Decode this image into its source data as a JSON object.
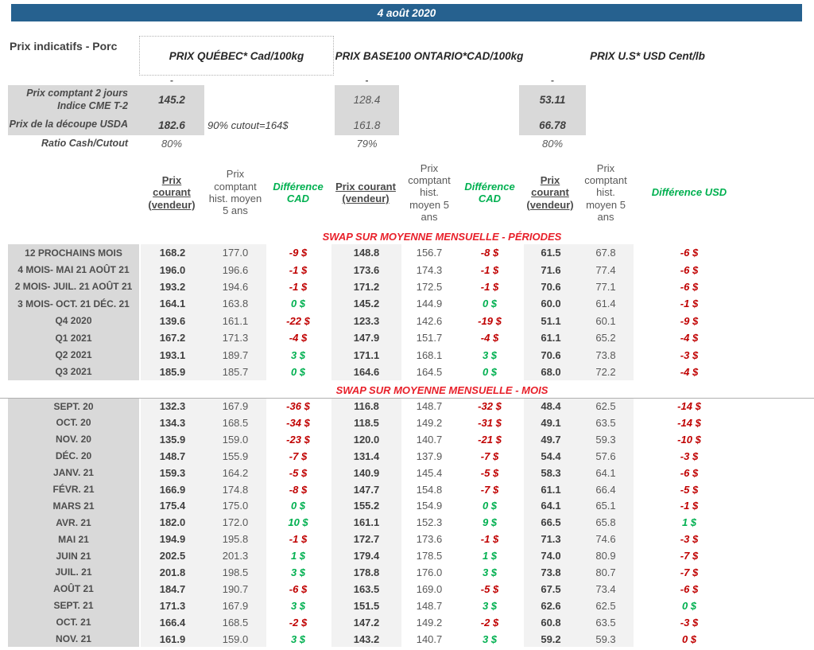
{
  "banner": {
    "date": "4 août 2020"
  },
  "intro": {
    "label": "Prix indicatifs - Porc"
  },
  "regions": [
    {
      "label": "PRIX QUÉBEC* Cad/100kg"
    },
    {
      "label": "PRIX BASE100 ONTARIO*CAD/100kg"
    },
    {
      "label": "PRIX U.S* USD Cent/lb"
    }
  ],
  "spot": {
    "dash": "-",
    "cme": {
      "label1": "Prix comptant 2 jours",
      "label2": "Indice CME T-2",
      "qc": "145.2",
      "on": "128.4",
      "us": "53.11"
    },
    "cutout": {
      "label": "Prix de la découpe USDA",
      "qc": "182.6",
      "note": "90% cutout=164$",
      "on": "161.8",
      "us": "66.78"
    },
    "ratio": {
      "label": "Ratio Cash/Cutout",
      "qc": "80%",
      "on": "79%",
      "us": "80%"
    }
  },
  "columns": {
    "current": "Prix courant (vendeur)",
    "hist": "Prix comptant hist. moyen 5 ans",
    "diff_cad": "Différence CAD",
    "diff_usd": "Différence USD"
  },
  "colors": {
    "negative": "#c00000",
    "positive": "#00b050",
    "section_title": "#e8202a",
    "banner_blue": "#26618f"
  },
  "sections": [
    {
      "title": "SWAP SUR MOYENNE MENSUELLE - PÉRIODES",
      "rows": [
        {
          "label": "12 PROCHAINS MOIS",
          "cells": [
            "168.2",
            "177.0",
            "-9 $",
            "148.8",
            "156.7",
            "-8 $",
            "61.5",
            "67.8",
            "-6 $"
          ],
          "dc": [
            "n",
            "n",
            "n"
          ]
        },
        {
          "label": "4 MOIS- MAI 21 AOÛT 21",
          "cells": [
            "196.0",
            "196.6",
            "-1 $",
            "173.6",
            "174.3",
            "-1 $",
            "71.6",
            "77.4",
            "-6 $"
          ],
          "dc": [
            "n",
            "n",
            "n"
          ]
        },
        {
          "label": "2 MOIS- JUIL. 21 AOÛT 21",
          "cells": [
            "193.2",
            "194.6",
            "-1 $",
            "171.2",
            "172.5",
            "-1 $",
            "70.6",
            "77.1",
            "-6 $"
          ],
          "dc": [
            "n",
            "n",
            "n"
          ]
        },
        {
          "label": "3 MOIS- OCT. 21 DÉC. 21",
          "cells": [
            "164.1",
            "163.8",
            "0 $",
            "145.2",
            "144.9",
            "0 $",
            "60.0",
            "61.4",
            "-1 $"
          ],
          "dc": [
            "p",
            "p",
            "n"
          ]
        },
        {
          "label": "Q4 2020",
          "cells": [
            "139.6",
            "161.1",
            "-22 $",
            "123.3",
            "142.6",
            "-19 $",
            "51.1",
            "60.1",
            "-9 $"
          ],
          "dc": [
            "n",
            "n",
            "n"
          ]
        },
        {
          "label": "Q1 2021",
          "cells": [
            "167.2",
            "171.3",
            "-4 $",
            "147.9",
            "151.7",
            "-4 $",
            "61.1",
            "65.2",
            "-4 $"
          ],
          "dc": [
            "n",
            "n",
            "n"
          ]
        },
        {
          "label": "Q2 2021",
          "cells": [
            "193.1",
            "189.7",
            "3 $",
            "171.1",
            "168.1",
            "3 $",
            "70.6",
            "73.8",
            "-3 $"
          ],
          "dc": [
            "p",
            "p",
            "n"
          ]
        },
        {
          "label": "Q3 2021",
          "cells": [
            "185.9",
            "185.7",
            "0 $",
            "164.6",
            "164.5",
            "0 $",
            "68.0",
            "72.2",
            "-4 $"
          ],
          "dc": [
            "p",
            "p",
            "n"
          ]
        }
      ]
    },
    {
      "title": "SWAP SUR MOYENNE MENSUELLE - MOIS",
      "rows": [
        {
          "label": "SEPT. 20",
          "cells": [
            "132.3",
            "167.9",
            "-36 $",
            "116.8",
            "148.7",
            "-32 $",
            "48.4",
            "62.5",
            "-14 $"
          ],
          "dc": [
            "n",
            "n",
            "n"
          ]
        },
        {
          "label": "OCT. 20",
          "cells": [
            "134.3",
            "168.5",
            "-34 $",
            "118.5",
            "149.2",
            "-31 $",
            "49.1",
            "63.5",
            "-14 $"
          ],
          "dc": [
            "n",
            "n",
            "n"
          ]
        },
        {
          "label": "NOV. 20",
          "cells": [
            "135.9",
            "159.0",
            "-23 $",
            "120.0",
            "140.7",
            "-21 $",
            "49.7",
            "59.3",
            "-10 $"
          ],
          "dc": [
            "n",
            "n",
            "n"
          ]
        },
        {
          "label": "DÉC. 20",
          "cells": [
            "148.7",
            "155.9",
            "-7 $",
            "131.4",
            "137.9",
            "-7 $",
            "54.4",
            "57.6",
            "-3 $"
          ],
          "dc": [
            "n",
            "n",
            "n"
          ]
        },
        {
          "label": "JANV. 21",
          "cells": [
            "159.3",
            "164.2",
            "-5 $",
            "140.9",
            "145.4",
            "-5 $",
            "58.3",
            "64.1",
            "-6 $"
          ],
          "dc": [
            "n",
            "n",
            "n"
          ]
        },
        {
          "label": "FÉVR. 21",
          "cells": [
            "166.9",
            "174.8",
            "-8 $",
            "147.7",
            "154.8",
            "-7 $",
            "61.1",
            "66.4",
            "-5 $"
          ],
          "dc": [
            "n",
            "n",
            "n"
          ]
        },
        {
          "label": "MARS 21",
          "cells": [
            "175.4",
            "175.0",
            "0 $",
            "155.2",
            "154.9",
            "0 $",
            "64.1",
            "65.1",
            "-1 $"
          ],
          "dc": [
            "p",
            "p",
            "n"
          ]
        },
        {
          "label": "AVR. 21",
          "cells": [
            "182.0",
            "172.0",
            "10 $",
            "161.1",
            "152.3",
            "9 $",
            "66.5",
            "65.8",
            "1 $"
          ],
          "dc": [
            "p",
            "p",
            "p"
          ]
        },
        {
          "label": "MAI 21",
          "cells": [
            "194.9",
            "195.8",
            "-1 $",
            "172.7",
            "173.6",
            "-1 $",
            "71.3",
            "74.6",
            "-3 $"
          ],
          "dc": [
            "n",
            "n",
            "n"
          ]
        },
        {
          "label": "JUIN 21",
          "cells": [
            "202.5",
            "201.3",
            "1 $",
            "179.4",
            "178.5",
            "1 $",
            "74.0",
            "80.9",
            "-7 $"
          ],
          "dc": [
            "p",
            "p",
            "n"
          ]
        },
        {
          "label": "JUIL. 21",
          "cells": [
            "201.8",
            "198.5",
            "3 $",
            "178.8",
            "176.0",
            "3 $",
            "73.8",
            "80.7",
            "-7 $"
          ],
          "dc": [
            "p",
            "p",
            "n"
          ]
        },
        {
          "label": "AOÛT 21",
          "cells": [
            "184.7",
            "190.7",
            "-6 $",
            "163.5",
            "169.0",
            "-5 $",
            "67.5",
            "73.4",
            "-6 $"
          ],
          "dc": [
            "n",
            "n",
            "n"
          ]
        },
        {
          "label": "SEPT. 21",
          "cells": [
            "171.3",
            "167.9",
            "3 $",
            "151.5",
            "148.7",
            "3 $",
            "62.6",
            "62.5",
            "0 $"
          ],
          "dc": [
            "p",
            "p",
            "p"
          ]
        },
        {
          "label": "OCT. 21",
          "cells": [
            "166.4",
            "168.5",
            "-2 $",
            "147.2",
            "149.2",
            "-2 $",
            "60.8",
            "63.5",
            "-3 $"
          ],
          "dc": [
            "n",
            "n",
            "n"
          ]
        },
        {
          "label": "NOV. 21",
          "cells": [
            "161.9",
            "159.0",
            "3 $",
            "143.2",
            "140.7",
            "3 $",
            "59.2",
            "59.3",
            "0 $"
          ],
          "dc": [
            "p",
            "p",
            "n"
          ]
        }
      ]
    }
  ]
}
